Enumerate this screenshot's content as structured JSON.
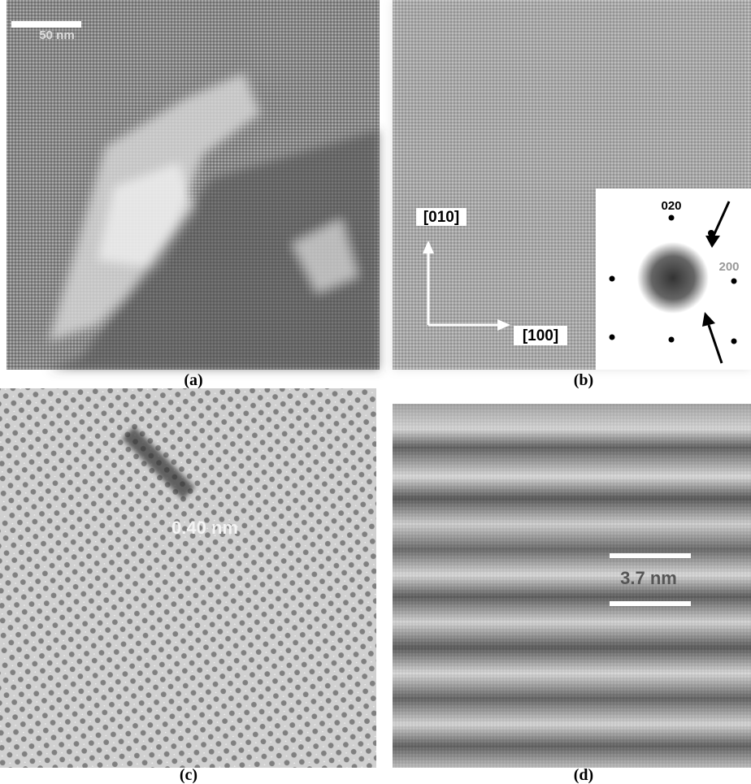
{
  "panels": [
    {
      "label": "(a)",
      "scale_label": "50 nm"
    },
    {
      "label": "(b)",
      "direction_labels": [
        "[010]",
        "[100]"
      ],
      "diffraction_labels": [
        "020",
        "200"
      ]
    },
    {
      "label": "(c)",
      "spacing_label": "0.40 nm"
    },
    {
      "label": "(d)",
      "spacing_label": "3.7 nm"
    }
  ]
}
